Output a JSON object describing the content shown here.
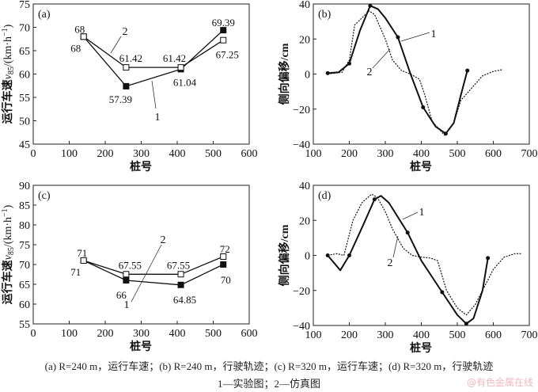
{
  "chart_data": [
    {
      "id": "a",
      "type": "line",
      "panel_label": "(a)",
      "xlabel": "桩号",
      "ylabel": {
        "main": "运行车速",
        "var": "v",
        "sub": "85",
        "unit": "/(km·h",
        "sup": "−1",
        "close": ")"
      },
      "xlim": [
        0,
        600
      ],
      "ylim": [
        45,
        75
      ],
      "xticks": [
        0,
        100,
        200,
        300,
        400,
        500,
        600
      ],
      "yticks": [
        45,
        50,
        55,
        60,
        65,
        70,
        75
      ],
      "series": [
        {
          "name": "1",
          "marker": "filled-square",
          "x": [
            140,
            258,
            410,
            528
          ],
          "y": [
            68,
            57.39,
            61.04,
            69.39
          ],
          "labels": [
            "68",
            "57.39",
            "61.04",
            "69.39"
          ]
        },
        {
          "name": "2",
          "marker": "open-square",
          "x": [
            140,
            258,
            410,
            528
          ],
          "y": [
            68,
            61.42,
            61.42,
            67.25
          ],
          "labels": [
            "68",
            "61.42",
            "61.42",
            "67.25"
          ]
        }
      ]
    },
    {
      "id": "b",
      "type": "line",
      "panel_label": "(b)",
      "xlabel": "桩号",
      "ylabel": {
        "main": "侧向偏移/cm"
      },
      "xlim": [
        100,
        700
      ],
      "ylim": [
        -40,
        40
      ],
      "xticks": [
        100,
        200,
        300,
        400,
        500,
        600,
        700
      ],
      "yticks": [
        -40,
        -20,
        0,
        20,
        40
      ],
      "series": [
        {
          "name": "1",
          "style": "solid",
          "x": [
            140,
            170,
            200,
            230,
            258,
            280,
            300,
            335,
            370,
            405,
            440,
            468,
            490,
            510,
            528
          ],
          "y": [
            0.5,
            1,
            6,
            25,
            39,
            37,
            32,
            21,
            0,
            -19,
            -30,
            -34,
            -28,
            -12,
            2
          ],
          "markers_x": [
            140,
            200,
            258,
            335,
            405,
            468,
            528
          ],
          "markers_y": [
            0.5,
            6,
            39,
            21,
            -19,
            -34,
            2
          ]
        },
        {
          "name": "2",
          "style": "dotted",
          "x": [
            140,
            180,
            200,
            215,
            235,
            255,
            270,
            300,
            320,
            345,
            370,
            395,
            410,
            430,
            465,
            490,
            510,
            540,
            570,
            600,
            625
          ],
          "y": [
            0,
            1,
            8,
            28,
            32,
            36,
            34,
            20,
            8,
            2,
            0,
            -3,
            -12,
            -27,
            -35,
            -28,
            -15,
            -8,
            -1,
            1.5,
            2.5
          ]
        }
      ]
    },
    {
      "id": "c",
      "type": "line",
      "panel_label": "(c)",
      "xlabel": "桩号",
      "ylabel": {
        "main": "运行车速",
        "var": "v",
        "sub": "85",
        "unit": "/(km·h",
        "sup": "−1",
        "close": ")"
      },
      "xlim": [
        0,
        600
      ],
      "ylim": [
        55,
        90
      ],
      "xticks": [
        0,
        100,
        200,
        300,
        400,
        500,
        600
      ],
      "yticks": [
        55,
        60,
        65,
        70,
        75,
        80,
        85,
        90
      ],
      "series": [
        {
          "name": "1",
          "marker": "filled-square",
          "x": [
            140,
            258,
            410,
            528
          ],
          "y": [
            71,
            66,
            64.85,
            70
          ],
          "labels": [
            "71",
            "66",
            "64.85",
            "70"
          ]
        },
        {
          "name": "2",
          "marker": "open-square",
          "x": [
            140,
            258,
            410,
            528
          ],
          "y": [
            71,
            67.55,
            67.55,
            72
          ],
          "labels": [
            "71",
            "67.55",
            "67.55",
            "72"
          ]
        }
      ]
    },
    {
      "id": "d",
      "type": "line",
      "panel_label": "(d)",
      "xlabel": "桩号",
      "ylabel": {
        "main": "侧向偏移/cm"
      },
      "xlim": [
        100,
        700
      ],
      "ylim": [
        -40,
        40
      ],
      "xticks": [
        100,
        200,
        300,
        400,
        500,
        600,
        700
      ],
      "yticks": [
        -40,
        -20,
        0,
        20,
        40
      ],
      "series": [
        {
          "name": "1",
          "style": "solid",
          "x": [
            140,
            175,
            200,
            240,
            270,
            288,
            310,
            362,
            400,
            458,
            500,
            525,
            545,
            570,
            585
          ],
          "y": [
            0,
            -8.5,
            0,
            18,
            32,
            34,
            30,
            13,
            -3,
            -21,
            -34,
            -39,
            -36,
            -20,
            -1.5
          ],
          "markers_x": [
            140,
            200,
            270,
            362,
            458,
            525,
            585
          ],
          "markers_y": [
            0,
            0,
            32,
            13,
            -21,
            -39,
            -1.5
          ]
        },
        {
          "name": "2",
          "style": "dotted",
          "x": [
            140,
            165,
            185,
            210,
            235,
            262,
            278,
            300,
            320,
            350,
            375,
            400,
            425,
            445,
            470,
            500,
            525,
            550,
            575,
            600,
            630,
            660,
            678
          ],
          "y": [
            0,
            1,
            0,
            20,
            30,
            35,
            33,
            25,
            15,
            4,
            0,
            -1,
            -1.5,
            -3,
            -20,
            -30,
            -34,
            -28,
            -18,
            -8,
            -1,
            1,
            1
          ]
        }
      ]
    }
  ],
  "caption": {
    "line1": "(a) R=240 m，运行车速；(b) R=240 m，行驶轨迹；(c) R=320 m，运行车速；(d) R=320 m，行驶轨迹",
    "line2": "1—实验图；2—仿真图"
  },
  "watermark": "@有色金属在线"
}
